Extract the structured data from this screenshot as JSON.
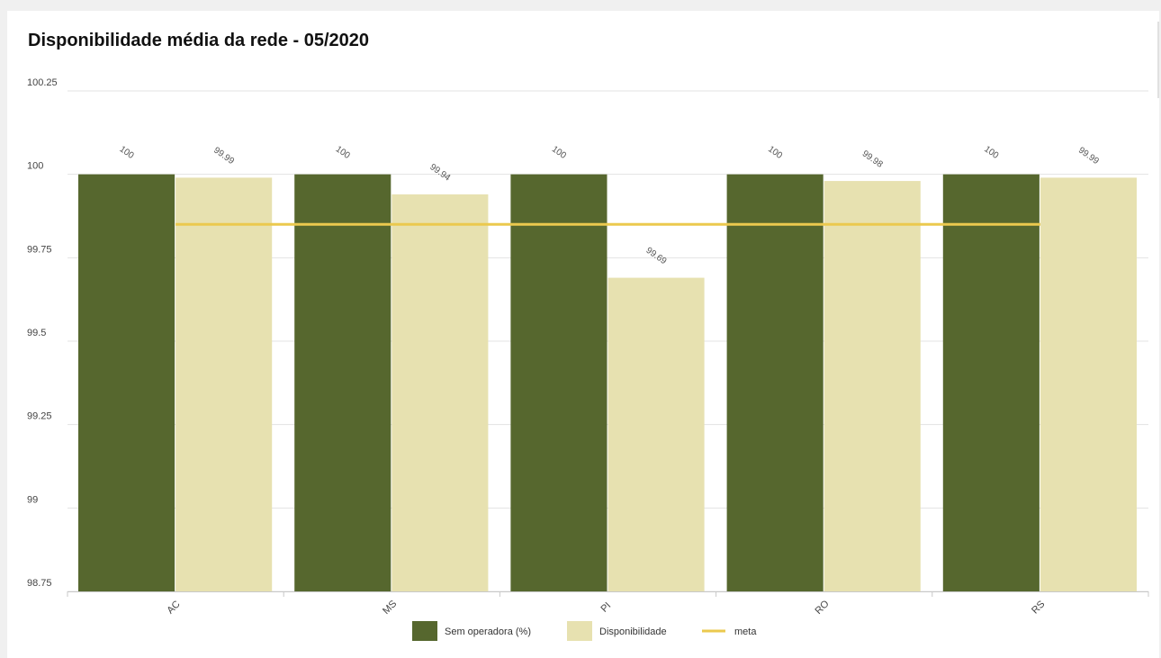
{
  "chart_data": {
    "type": "bar",
    "title": "Disponibilidade média da rede - 05/2020",
    "categories": [
      "AC",
      "MS",
      "PI",
      "RO",
      "RS"
    ],
    "series": [
      {
        "name": "Sem operadora (%)",
        "values": [
          100,
          100,
          100,
          100,
          100
        ],
        "labels": [
          "100",
          "100",
          "100",
          "100",
          "100"
        ],
        "color": "#56672e"
      },
      {
        "name": "Disponibilidade",
        "values": [
          99.99,
          99.94,
          99.69,
          99.98,
          99.99
        ],
        "labels": [
          "99.99",
          "99.94",
          "99.69",
          "99.98",
          "99.99"
        ],
        "color": "#e7e1b0"
      }
    ],
    "reference_line": {
      "name": "meta",
      "value": 99.85,
      "color": "#ebc94e"
    },
    "ylim": [
      98.75,
      100.25
    ],
    "yticks": [
      "98.75",
      "99",
      "99.25",
      "99.5",
      "99.75",
      "100",
      "100.25"
    ],
    "xlabel": "",
    "ylabel": "",
    "grid": true,
    "legend_position": "bottom-center"
  }
}
